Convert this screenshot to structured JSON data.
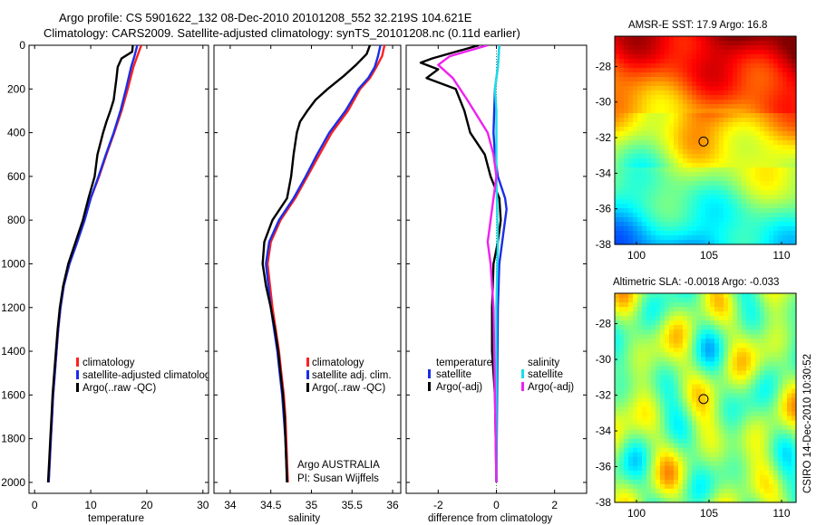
{
  "figure": {
    "title_line1": "Argo profile: CS 5901622_132 08-Dec-2010 20101208_552 32.219S 104.621E",
    "title_line2": "Climatology: CARS2009. Satellite-adjusted climatology: synTS_20101208.nc (0.11d earlier)",
    "credit": "CSIRO 14-Dec-2010 10:30:52",
    "argo_label": "Argo AUSTRALIA",
    "pi_label": "PI: Susan Wijffels"
  },
  "colors": {
    "climatology": "#ff2020",
    "satellite": "#1a2ee8",
    "argo": "#000000",
    "sal_satellite": "#19e0e6",
    "sal_argo": "#ee22ee"
  },
  "chart_data": [
    {
      "type": "line",
      "name": "temperature-profile",
      "xlabel": "temperature",
      "ylabel": "",
      "xlim": [
        -1,
        31
      ],
      "ylim": [
        2050,
        0
      ],
      "xticks": [
        0,
        10,
        20,
        30
      ],
      "yticks": [
        0,
        200,
        400,
        600,
        800,
        1000,
        1200,
        1400,
        1600,
        1800,
        2000
      ],
      "legend": [
        "climatology",
        "satellite-adjusted climatology",
        "Argo(..raw -QC)"
      ],
      "series": [
        {
          "name": "climatology",
          "color_key": "climatology",
          "points": [
            [
              19,
              0
            ],
            [
              18.3,
              50
            ],
            [
              17.6,
              100
            ],
            [
              16.6,
              200
            ],
            [
              15.5,
              300
            ],
            [
              14.2,
              400
            ],
            [
              12.8,
              500
            ],
            [
              11.5,
              600
            ],
            [
              10,
              700
            ],
            [
              8.9,
              800
            ],
            [
              7.6,
              900
            ],
            [
              6.2,
              1000
            ],
            [
              5.2,
              1100
            ],
            [
              4.6,
              1200
            ],
            [
              4.2,
              1300
            ],
            [
              3.9,
              1400
            ],
            [
              3.6,
              1500
            ],
            [
              3.3,
              1600
            ],
            [
              3.1,
              1700
            ],
            [
              2.9,
              1800
            ],
            [
              2.7,
              1900
            ],
            [
              2.5,
              2000
            ]
          ]
        },
        {
          "name": "satellite-adjusted climatology",
          "color_key": "satellite",
          "points": [
            [
              18.3,
              0
            ],
            [
              17.8,
              50
            ],
            [
              17.2,
              100
            ],
            [
              16.3,
              200
            ],
            [
              15.3,
              300
            ],
            [
              14.1,
              400
            ],
            [
              12.7,
              500
            ],
            [
              11.4,
              600
            ],
            [
              10,
              700
            ],
            [
              8.9,
              800
            ],
            [
              7.6,
              900
            ],
            [
              6.2,
              1000
            ],
            [
              5.2,
              1100
            ],
            [
              4.6,
              1200
            ],
            [
              4.2,
              1300
            ],
            [
              3.9,
              1400
            ],
            [
              3.6,
              1500
            ],
            [
              3.3,
              1600
            ],
            [
              3.1,
              1700
            ],
            [
              2.9,
              1800
            ],
            [
              2.7,
              1900
            ],
            [
              2.5,
              2000
            ]
          ]
        },
        {
          "name": "Argo(..raw -QC)",
          "color_key": "argo",
          "points": [
            [
              17.5,
              0
            ],
            [
              17.4,
              30
            ],
            [
              15.5,
              60
            ],
            [
              14.8,
              100
            ],
            [
              14.6,
              150
            ],
            [
              14.1,
              250
            ],
            [
              13.5,
              300
            ],
            [
              12.8,
              350
            ],
            [
              12.2,
              400
            ],
            [
              11.7,
              450
            ],
            [
              11.2,
              500
            ],
            [
              10.7,
              600
            ],
            [
              9.6,
              700
            ],
            [
              8.6,
              800
            ],
            [
              7.3,
              900
            ],
            [
              6,
              1000
            ],
            [
              5.1,
              1100
            ],
            [
              4.5,
              1200
            ],
            [
              4.1,
              1300
            ],
            [
              3.8,
              1400
            ],
            [
              3.5,
              1500
            ],
            [
              3.2,
              1600
            ],
            [
              3,
              1700
            ],
            [
              2.8,
              1800
            ],
            [
              2.6,
              1900
            ],
            [
              2.4,
              2000
            ]
          ]
        }
      ]
    },
    {
      "type": "line",
      "name": "salinity-profile",
      "xlabel": "salinity",
      "xlim": [
        33.8,
        36.1
      ],
      "ylim": [
        2050,
        0
      ],
      "xticks": [
        34,
        34.5,
        35,
        35.5,
        36
      ],
      "legend": [
        "climatology",
        "satellite adj. clim.",
        "Argo(..raw -QC)"
      ],
      "series": [
        {
          "name": "climatology",
          "color_key": "climatology",
          "points": [
            [
              35.9,
              0
            ],
            [
              35.87,
              50
            ],
            [
              35.8,
              100
            ],
            [
              35.72,
              150
            ],
            [
              35.6,
              200
            ],
            [
              35.45,
              300
            ],
            [
              35.25,
              400
            ],
            [
              35.1,
              500
            ],
            [
              34.95,
              600
            ],
            [
              34.8,
              700
            ],
            [
              34.62,
              800
            ],
            [
              34.5,
              900
            ],
            [
              34.46,
              1000
            ],
            [
              34.49,
              1100
            ],
            [
              34.52,
              1200
            ],
            [
              34.56,
              1300
            ],
            [
              34.6,
              1400
            ],
            [
              34.63,
              1500
            ],
            [
              34.66,
              1600
            ],
            [
              34.68,
              1700
            ],
            [
              34.69,
              1800
            ],
            [
              34.7,
              1900
            ],
            [
              34.71,
              2000
            ]
          ]
        },
        {
          "name": "satellite adj. clim.",
          "color_key": "satellite",
          "points": [
            [
              35.85,
              0
            ],
            [
              35.82,
              50
            ],
            [
              35.78,
              100
            ],
            [
              35.7,
              150
            ],
            [
              35.58,
              200
            ],
            [
              35.42,
              300
            ],
            [
              35.22,
              400
            ],
            [
              35.07,
              500
            ],
            [
              34.93,
              600
            ],
            [
              34.78,
              700
            ],
            [
              34.6,
              800
            ],
            [
              34.48,
              900
            ],
            [
              34.44,
              1000
            ],
            [
              34.47,
              1100
            ],
            [
              34.5,
              1200
            ],
            [
              34.54,
              1300
            ],
            [
              34.58,
              1400
            ],
            [
              34.61,
              1500
            ],
            [
              34.64,
              1600
            ],
            [
              34.66,
              1700
            ],
            [
              34.68,
              1800
            ],
            [
              34.69,
              1900
            ],
            [
              34.7,
              2000
            ]
          ]
        },
        {
          "name": "Argo(..raw -QC)",
          "color_key": "argo",
          "points": [
            [
              35.72,
              0
            ],
            [
              35.68,
              40
            ],
            [
              35.55,
              90
            ],
            [
              35.4,
              140
            ],
            [
              35.2,
              200
            ],
            [
              35.05,
              250
            ],
            [
              34.95,
              300
            ],
            [
              34.86,
              350
            ],
            [
              34.82,
              400
            ],
            [
              34.78,
              500
            ],
            [
              34.75,
              600
            ],
            [
              34.7,
              700
            ],
            [
              34.52,
              800
            ],
            [
              34.42,
              900
            ],
            [
              34.4,
              1000
            ],
            [
              34.44,
              1100
            ],
            [
              34.5,
              1200
            ],
            [
              34.55,
              1300
            ],
            [
              34.59,
              1400
            ],
            [
              34.62,
              1500
            ],
            [
              34.65,
              1600
            ],
            [
              34.67,
              1700
            ],
            [
              34.68,
              1800
            ],
            [
              34.69,
              1900
            ],
            [
              34.7,
              2000
            ]
          ]
        }
      ]
    },
    {
      "type": "line",
      "name": "difference-profile",
      "xlabel": "difference from climatology",
      "xlim": [
        -3.1,
        3.1
      ],
      "ylim": [
        2050,
        0
      ],
      "xticks": [
        -2,
        0,
        2
      ],
      "legend_left_title": "temperature",
      "legend_right_title": "salinity",
      "legend": [
        "satellite",
        "Argo(-adj)",
        "satellite",
        "Argo(-adj)"
      ],
      "series": [
        {
          "name": "temperature satellite",
          "color_key": "satellite",
          "points": [
            [
              0.1,
              0
            ],
            [
              0.05,
              100
            ],
            [
              -0.05,
              200
            ],
            [
              -0.1,
              400
            ],
            [
              -0.05,
              500
            ],
            [
              0.05,
              600
            ],
            [
              0.3,
              700
            ],
            [
              0.35,
              750
            ],
            [
              0.3,
              800
            ],
            [
              0.2,
              900
            ],
            [
              0.1,
              1000
            ],
            [
              0.05,
              1200
            ],
            [
              0,
              2000
            ]
          ]
        },
        {
          "name": "temperature Argo(-adj)",
          "color_key": "argo",
          "points": [
            [
              -0.6,
              0
            ],
            [
              -2.2,
              60
            ],
            [
              -2.6,
              80
            ],
            [
              -2.0,
              110
            ],
            [
              -2.4,
              150
            ],
            [
              -1.4,
              200
            ],
            [
              -1.1,
              300
            ],
            [
              -0.9,
              400
            ],
            [
              -0.4,
              500
            ],
            [
              -0.2,
              600
            ],
            [
              0.1,
              700
            ],
            [
              0.15,
              800
            ],
            [
              0.05,
              900
            ],
            [
              -0.1,
              1000
            ],
            [
              -0.15,
              1200
            ],
            [
              -0.15,
              1400
            ],
            [
              -0.05,
              1600
            ],
            [
              0,
              2000
            ]
          ]
        },
        {
          "name": "salinity satellite",
          "color_key": "sal_satellite",
          "points": [
            [
              0.1,
              0
            ],
            [
              0.05,
              100
            ],
            [
              -0.05,
              200
            ],
            [
              0,
              300
            ],
            [
              0,
              600
            ],
            [
              0.05,
              900
            ],
            [
              0,
              1200
            ],
            [
              0,
              2000
            ]
          ]
        },
        {
          "name": "salinity Argo(-adj)",
          "color_key": "sal_argo",
          "points": [
            [
              -0.3,
              0
            ],
            [
              -1.6,
              50
            ],
            [
              -2.0,
              90
            ],
            [
              -1.5,
              150
            ],
            [
              -1.0,
              250
            ],
            [
              -0.3,
              400
            ],
            [
              -0.1,
              500
            ],
            [
              0,
              600
            ],
            [
              -0.1,
              700
            ],
            [
              -0.2,
              800
            ],
            [
              -0.3,
              900
            ],
            [
              -0.2,
              1000
            ],
            [
              -0.1,
              1200
            ],
            [
              0,
              2000
            ]
          ]
        }
      ]
    },
    {
      "type": "heatmap",
      "name": "sst-map",
      "title": "AMSR-E SST: 17.9 Argo: 16.8",
      "xlim": [
        98.5,
        111
      ],
      "ylim": [
        -38,
        -26.3
      ],
      "xticks": [
        100,
        105,
        110
      ],
      "yticks": [
        -28,
        -30,
        -32,
        -34,
        -36,
        -38
      ],
      "marker": {
        "lon": 104.621,
        "lat": -32.219
      }
    },
    {
      "type": "heatmap",
      "name": "sla-map",
      "title": "Altimetric SLA: -0.0018 Argo: -0.033",
      "xlim": [
        98.5,
        111
      ],
      "ylim": [
        -38,
        -26.3
      ],
      "xticks": [
        100,
        105,
        110
      ],
      "yticks": [
        -28,
        -30,
        -32,
        -34,
        -36,
        -38
      ],
      "marker": {
        "lon": 104.621,
        "lat": -32.219
      }
    }
  ]
}
